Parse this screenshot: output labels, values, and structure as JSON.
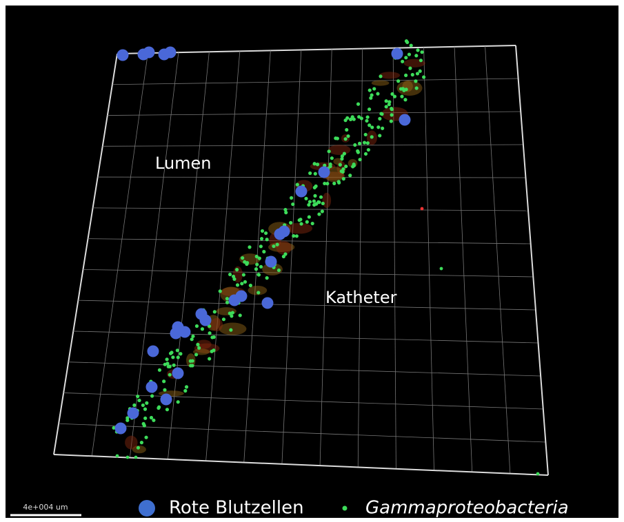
{
  "labels": {
    "lumen": "Lumen",
    "katheter": "Katheter"
  },
  "scale_bar": "4e+004 um",
  "legend": [
    {
      "label": "Rote Blutzellen"
    },
    {
      "label": "Gammaproteobacteria"
    }
  ]
}
